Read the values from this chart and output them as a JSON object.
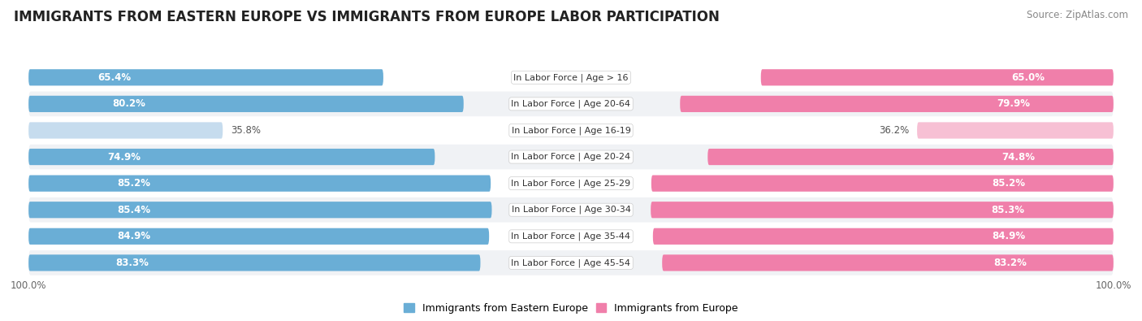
{
  "title": "IMMIGRANTS FROM EASTERN EUROPE VS IMMIGRANTS FROM EUROPE LABOR PARTICIPATION",
  "source": "Source: ZipAtlas.com",
  "categories": [
    "In Labor Force | Age > 16",
    "In Labor Force | Age 20-64",
    "In Labor Force | Age 16-19",
    "In Labor Force | Age 20-24",
    "In Labor Force | Age 25-29",
    "In Labor Force | Age 30-34",
    "In Labor Force | Age 35-44",
    "In Labor Force | Age 45-54"
  ],
  "eastern_europe_values": [
    65.4,
    80.2,
    35.8,
    74.9,
    85.2,
    85.4,
    84.9,
    83.3
  ],
  "europe_values": [
    65.0,
    79.9,
    36.2,
    74.8,
    85.2,
    85.3,
    84.9,
    83.2
  ],
  "eastern_europe_color": "#6aaed6",
  "eastern_europe_color_light": "#c6dcee",
  "europe_color": "#f07faa",
  "europe_color_light": "#f7c0d4",
  "row_bg_color": "#f0f2f5",
  "row_bg_alt": "#ffffff",
  "label_color_dark": "#555555",
  "label_color_white": "#ffffff",
  "max_value": 100.0,
  "legend_eastern": "Immigrants from Eastern Europe",
  "legend_europe": "Immigrants from Europe",
  "title_fontsize": 12,
  "source_fontsize": 8.5,
  "bar_label_fontsize": 8.5,
  "category_fontsize": 8,
  "legend_fontsize": 9,
  "axis_label_fontsize": 8.5
}
